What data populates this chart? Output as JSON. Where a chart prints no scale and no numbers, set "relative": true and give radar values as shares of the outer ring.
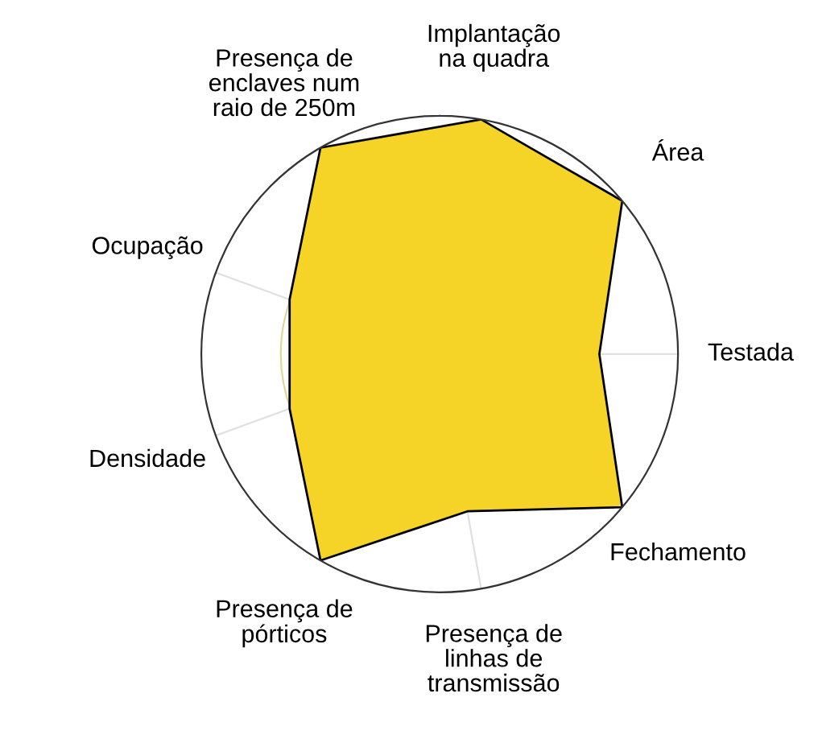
{
  "chart_data": {
    "type": "radar",
    "relative": true,
    "grid": true,
    "categories": [
      "Implantação\nna quadra",
      "Área",
      "Testada",
      "Fechamento",
      "Presença de\nlinhas de\ntransmissão",
      "Presença de\npórticos",
      "Densidade",
      "Ocupação",
      "Presença de\nenclaves num\nraio de 250m"
    ],
    "series": [
      {
        "color": "#f5d327",
        "values": [
          1,
          1,
          0.67,
          1,
          0.67,
          1,
          0.67,
          0.67,
          1
        ]
      }
    ]
  }
}
